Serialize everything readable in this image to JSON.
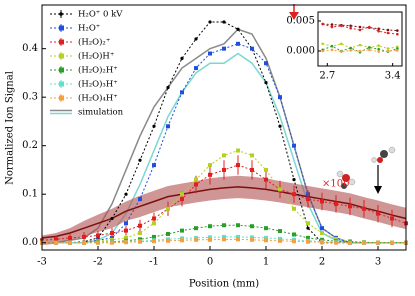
{
  "chart_data": {
    "type": "line",
    "xlabel": "Position (mm)",
    "ylabel": "Normalized Ion Signal",
    "xlim": [
      -3,
      3.5
    ],
    "ylim": [
      -0.015,
      0.49
    ],
    "xticks": [
      -3,
      -2,
      -1,
      0,
      1,
      2,
      3
    ],
    "yticks": [
      {
        "value": 0,
        "label": "0.0"
      },
      0.1,
      0.2,
      0.3,
      0.4
    ],
    "legend": "upper left",
    "x": [
      -3,
      -2.75,
      -2.5,
      -2.25,
      -2,
      -1.75,
      -1.5,
      -1.25,
      -1,
      -0.75,
      -0.5,
      -0.25,
      0,
      0.25,
      0.5,
      0.75,
      1,
      1.25,
      1.5,
      1.75,
      2,
      2.25,
      2.5,
      2.75,
      3,
      3.25,
      3.5
    ],
    "series": [
      {
        "name": "H₂O⁺ 0 kV",
        "color": "#000000",
        "marker": "dot",
        "values": [
          0,
          0,
          0,
          0.002,
          0.01,
          0.05,
          0.1,
          0.17,
          0.24,
          0.32,
          0.38,
          0.42,
          0.455,
          0.455,
          0.44,
          0.4,
          0.33,
          0.24,
          0.13,
          0.03,
          0,
          0,
          0,
          0,
          0,
          0,
          0
        ]
      },
      {
        "name": "H₂O⁺",
        "color": "#1f4fe0",
        "marker": "square",
        "values": [
          0,
          0,
          0,
          0,
          0.005,
          0.01,
          0.04,
          0.09,
          0.16,
          0.24,
          0.31,
          0.36,
          0.39,
          0.4,
          0.41,
          0.4,
          0.37,
          0.3,
          0.2,
          0.1,
          0.03,
          0.01,
          0,
          0,
          0,
          0,
          0
        ]
      },
      {
        "name": "(H₂O)₂⁺",
        "color": "#e02020",
        "marker": "square",
        "values": [
          0.005,
          0.007,
          0.01,
          0.012,
          0.015,
          0.02,
          0.025,
          0.035,
          0.05,
          0.07,
          0.09,
          0.12,
          0.14,
          0.15,
          0.16,
          0.15,
          0.13,
          0.11,
          0.1,
          0.09,
          0.085,
          0.08,
          0.075,
          0.07,
          0.06,
          0.05,
          0.04
        ],
        "errors": [
          0.008,
          0.008,
          0.008,
          0.01,
          0.01,
          0.01,
          0.01,
          0.012,
          0.012,
          0.015,
          0.015,
          0.018,
          0.02,
          0.02,
          0.02,
          0.02,
          0.018,
          0.018,
          0.018,
          0.018,
          0.018,
          0.018,
          0.018,
          0.018,
          0.018,
          0.018,
          0.018
        ]
      },
      {
        "name": "(H₂O)H⁺",
        "color": "#b5d020",
        "marker": "square",
        "values": [
          0,
          0,
          0,
          0,
          0.003,
          0.006,
          0.01,
          0.02,
          0.04,
          0.07,
          0.1,
          0.13,
          0.16,
          0.18,
          0.19,
          0.18,
          0.15,
          0.11,
          0.07,
          0.04,
          0.02,
          0.008,
          0.003,
          0,
          0,
          0,
          0
        ]
      },
      {
        "name": "(H₂O)₂H⁺",
        "color": "#2a9d2a",
        "marker": "square",
        "values": [
          0,
          0,
          0,
          0,
          0.001,
          0.002,
          0.004,
          0.007,
          0.012,
          0.018,
          0.025,
          0.03,
          0.034,
          0.036,
          0.036,
          0.034,
          0.03,
          0.024,
          0.017,
          0.01,
          0.006,
          0.003,
          0.002,
          0.001,
          0,
          0,
          0
        ]
      },
      {
        "name": "(H₂O)₃H⁺",
        "color": "#5ee0d0",
        "marker": "square",
        "values": [
          0,
          0,
          0,
          0,
          0,
          0.001,
          0.002,
          0.003,
          0.005,
          0.007,
          0.009,
          0.01,
          0.011,
          0.012,
          0.012,
          0.011,
          0.01,
          0.008,
          0.006,
          0.004,
          0.002,
          0.001,
          0,
          0,
          0,
          0,
          0
        ]
      },
      {
        "name": "(H₂O)₄H⁺",
        "color": "#f5a040",
        "marker": "square",
        "values": [
          0,
          0,
          0,
          0,
          0,
          0,
          0.001,
          0.002,
          0.003,
          0.004,
          0.005,
          0.006,
          0.006,
          0.007,
          0.007,
          0.006,
          0.005,
          0.004,
          0.003,
          0.002,
          0.001,
          0,
          0,
          0,
          0,
          0,
          0
        ]
      }
    ],
    "simulation": {
      "name": "simulation",
      "lines": [
        {
          "color": "#8a8a8a",
          "values": [
            0,
            0,
            0.005,
            0.01,
            0.03,
            0.08,
            0.15,
            0.22,
            0.28,
            0.32,
            0.36,
            0.38,
            0.4,
            0.41,
            0.44,
            0.43,
            0.38,
            0.3,
            0.2,
            0.1,
            0.03,
            0.01,
            0,
            0,
            0,
            0,
            0
          ]
        },
        {
          "color": "#7ad8d0",
          "values": [
            0,
            0,
            0,
            0,
            0.005,
            0.02,
            0.06,
            0.12,
            0.19,
            0.26,
            0.31,
            0.35,
            0.37,
            0.37,
            0.39,
            0.37,
            0.33,
            0.26,
            0.17,
            0.08,
            0.02,
            0.005,
            0,
            0,
            0,
            0,
            0
          ]
        },
        {
          "color": "#7a1010",
          "band_color": "#b05050",
          "values": [
            0.01,
            0.013,
            0.02,
            0.03,
            0.04,
            0.05,
            0.065,
            0.075,
            0.085,
            0.095,
            0.1,
            0.105,
            0.11,
            0.113,
            0.115,
            0.113,
            0.11,
            0.105,
            0.1,
            0.095,
            0.09,
            0.085,
            0.08,
            0.072,
            0.065,
            0.057,
            0.05
          ],
          "lower": [
            -0.005,
            -0.002,
            0.005,
            0.013,
            0.022,
            0.03,
            0.045,
            0.053,
            0.063,
            0.073,
            0.078,
            0.083,
            0.087,
            0.09,
            0.092,
            0.09,
            0.087,
            0.083,
            0.078,
            0.073,
            0.068,
            0.063,
            0.058,
            0.05,
            0.043,
            0.035,
            0.028
          ],
          "upper": [
            0.015,
            0.02,
            0.03,
            0.045,
            0.058,
            0.07,
            0.085,
            0.097,
            0.107,
            0.117,
            0.122,
            0.127,
            0.133,
            0.136,
            0.138,
            0.136,
            0.133,
            0.127,
            0.122,
            0.117,
            0.112,
            0.107,
            0.102,
            0.094,
            0.087,
            0.079,
            0.072
          ]
        }
      ]
    },
    "annotation": "×100",
    "inset": {
      "xlim": [
        2.6,
        3.5
      ],
      "ylim": [
        -0.0025,
        0.0065
      ],
      "xticks": [
        2.7,
        3.4
      ],
      "yticks": [
        {
          "value": 0,
          "label": "0.000"
        },
        {
          "value": 0.005,
          "label": "0.005"
        }
      ],
      "x": [
        2.65,
        2.75,
        2.85,
        2.95,
        3.05,
        3.15,
        3.25,
        3.35,
        3.45
      ],
      "series": [
        {
          "color": "#7a1010",
          "values": [
            0.0045,
            0.0044,
            0.0043,
            0.0042,
            0.004,
            0.0039,
            0.0037,
            0.0035,
            0.0034
          ]
        },
        {
          "color": "#e02020",
          "values": [
            0.0045,
            0.004,
            0.0042,
            0.0038,
            0.0035,
            0.004,
            0.0033,
            0.003,
            0.0028
          ]
        },
        {
          "color": "#b5d020",
          "values": [
            0.0012,
            0.0008,
            0.0012,
            0.0005,
            0.001,
            0.0006,
            0.0009,
            0.0004,
            0.0007
          ]
        },
        {
          "color": "#2a9d2a",
          "values": [
            0.0002,
            0.0008,
            0,
            0.0005,
            -0.0002,
            0.0006,
            0.0003,
            -0.0001,
            0.0004
          ]
        },
        {
          "color": "#f5a040",
          "values": [
            0,
            0.0002,
            -0.0001,
            0.0001,
            0,
            0.0002,
            -0.0001,
            0,
            0.0001
          ]
        }
      ]
    }
  }
}
